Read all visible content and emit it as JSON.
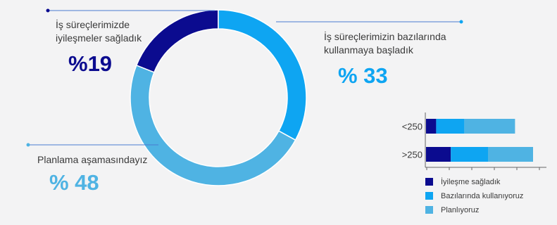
{
  "colors": {
    "dark_navy": "#0b0b8f",
    "bright_blue": "#0ea5f2",
    "light_blue": "#4fb3e3",
    "background": "#f3f3f4",
    "leader_line": "#4a7bd0"
  },
  "chart_data": [
    {
      "type": "pie",
      "variant": "donut",
      "categories": [
        "İş süreçlerimizde iyileşmeler sağladık",
        "İş süreçlerimizin bazılarında kullanmaya başladık",
        "Planlama aşamasındayız"
      ],
      "values": [
        19,
        33,
        48
      ],
      "labels": [
        {
          "line1": "İş süreçlerimizde",
          "line2": "iyileşmeler sağladık",
          "pct": "%19"
        },
        {
          "line1": "İş süreçlerimizin bazılarında",
          "line2": "kullanmaya başladık",
          "pct": "% 33"
        },
        {
          "line1": "Planlama aşamasındayız",
          "line2": "",
          "pct": "% 48"
        }
      ],
      "colors": [
        "#0b0b8f",
        "#0ea5f2",
        "#4fb3e3"
      ]
    },
    {
      "type": "bar",
      "orientation": "horizontal",
      "stacked": true,
      "categories": [
        "<250",
        ">250"
      ],
      "series": [
        {
          "name": "İyileşme sağladık",
          "values": [
            9,
            22
          ],
          "color": "#0b0b8f"
        },
        {
          "name": "Bazılarında kullanıyoruz",
          "values": [
            25,
            33
          ],
          "color": "#0ea5f2"
        },
        {
          "name": "Planlıyoruz",
          "values": [
            45,
            40
          ],
          "color": "#4fb3e3"
        }
      ],
      "xlim": [
        0,
        100
      ],
      "legend_position": "bottom"
    }
  ]
}
